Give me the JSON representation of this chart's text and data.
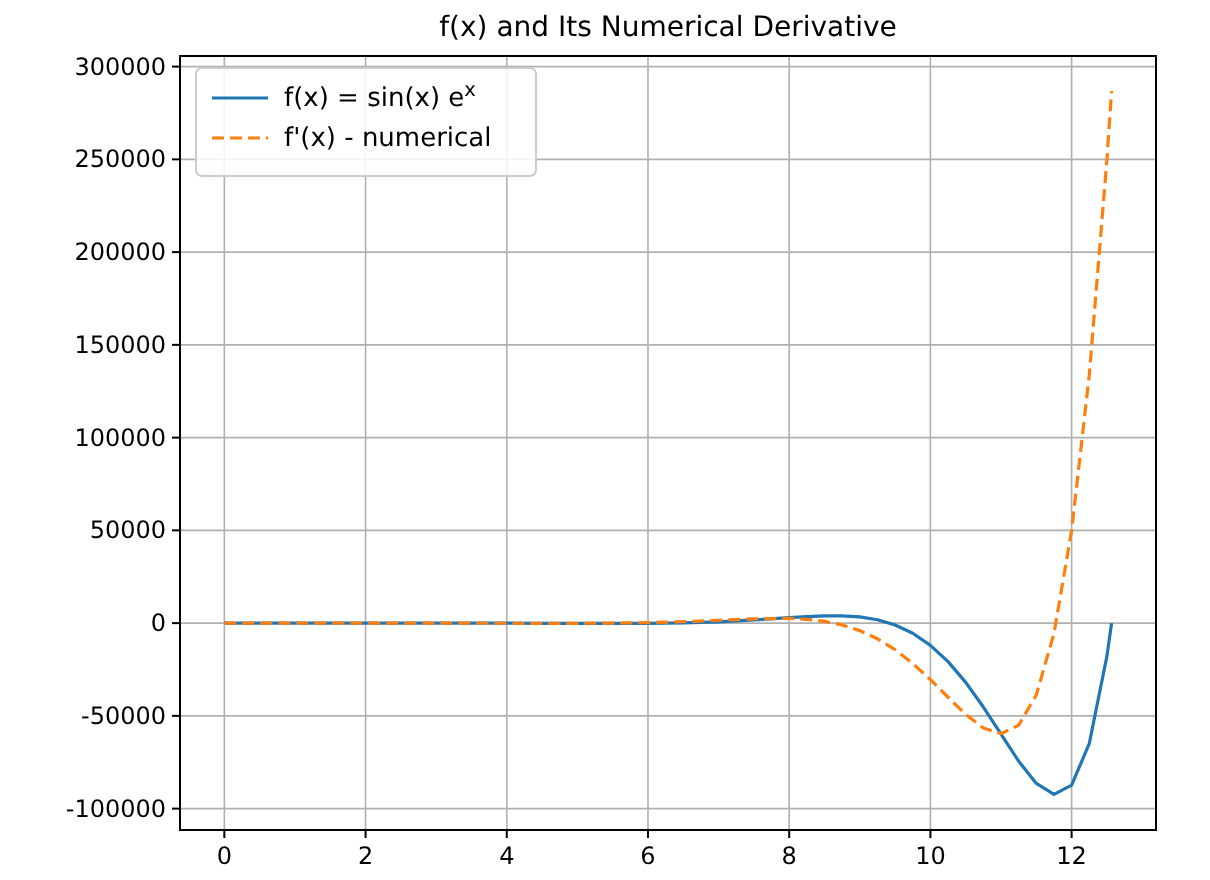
{
  "chart_data": {
    "type": "line",
    "title": "f(x) and Its Numerical Derivative",
    "x": [
      0,
      0.5,
      1,
      1.5,
      2,
      2.5,
      3,
      3.5,
      4,
      4.5,
      5,
      5.5,
      6,
      6.5,
      7,
      7.5,
      8,
      8.25,
      8.5,
      8.75,
      9,
      9.25,
      9.5,
      9.75,
      10,
      10.25,
      10.5,
      10.75,
      11,
      11.25,
      11.5,
      11.75,
      12,
      12.25,
      12.5,
      12.566
    ],
    "series": [
      {
        "name": "f(x) = sin(x) e$^{x}$",
        "color": "#1f77b4",
        "line_style": "solid",
        "values": [
          0,
          1,
          2,
          4,
          7,
          7,
          3,
          -12,
          -41,
          -88,
          -142,
          -173,
          -113,
          143,
          721,
          1696,
          2949,
          3531,
          3925,
          3943,
          3339,
          1809,
          -1003,
          -5481,
          -11982,
          -20777,
          -31947,
          -45236,
          -59874,
          -74405,
          -86426,
          -92365,
          -87334,
          -64910,
          -17791,
          0
        ]
      },
      {
        "name": "f'(x) - numerical",
        "color": "#ff7f0e",
        "line_style": "dashed",
        "values": [
          1,
          2,
          4,
          5,
          4,
          -2,
          -17,
          -43,
          -77,
          -107,
          -100,
          1,
          275,
          793,
          1547,
          2322,
          2516,
          2052,
          966,
          -984,
          -4044,
          -8437,
          -14326,
          -21736,
          -30464,
          -39967,
          -49215,
          -56572,
          -59610,
          -55054,
          -38716,
          -5551,
          50015,
          133727,
          249956,
          286751
        ]
      }
    ],
    "xlim": [
      -0.628,
      13.195
    ],
    "xticks": [
      0,
      2,
      4,
      6,
      8,
      10,
      12
    ],
    "ylim": [
      -111526,
      305717
    ],
    "yticks": [
      -100000,
      -50000,
      0,
      50000,
      100000,
      150000,
      200000,
      250000,
      300000
    ],
    "grid": true,
    "legend": "top left",
    "marker": "none"
  }
}
